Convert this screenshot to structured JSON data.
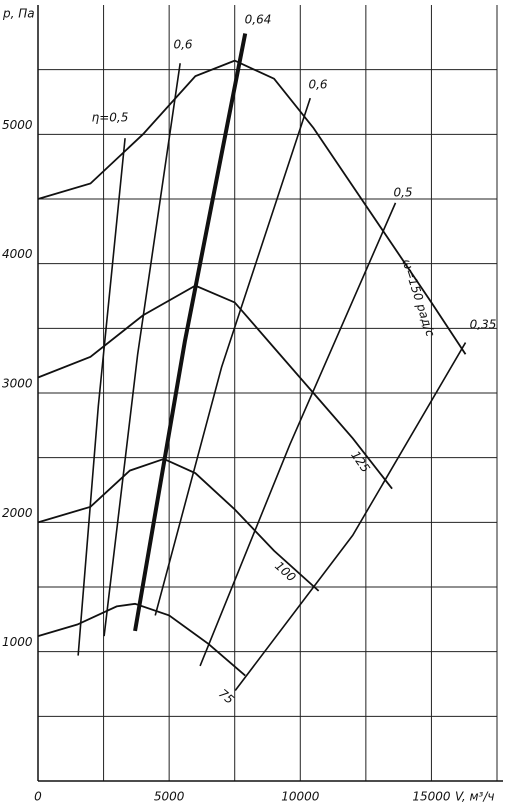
{
  "chart_data": {
    "type": "line",
    "y_label": "p, Па",
    "x_label": "V, м³/ч",
    "xlim": [
      0,
      17500
    ],
    "ylim": [
      0,
      6000
    ],
    "xticks": [
      0,
      5000,
      10000,
      15000
    ],
    "yticks": [
      1000,
      2000,
      3000,
      4000,
      5000
    ],
    "x_gridlines": [
      2500,
      7500,
      12500,
      17500
    ],
    "y_gridlines": [
      500,
      1500,
      2500,
      3500,
      4500,
      5500
    ],
    "grid": true,
    "series": [
      {
        "name": "75",
        "color": "#111",
        "x": [
          0,
          1500,
          3000,
          3700,
          5000,
          6500,
          7900
        ],
        "values": [
          1120,
          1210,
          1350,
          1370,
          1280,
          1060,
          815
        ]
      },
      {
        "name": "100",
        "color": "#111",
        "x": [
          0,
          2000,
          3500,
          4800,
          6000,
          7500,
          9000,
          10700
        ],
        "values": [
          2000,
          2120,
          2400,
          2490,
          2380,
          2100,
          1780,
          1470
        ]
      },
      {
        "name": "125",
        "color": "#111",
        "x": [
          0,
          2000,
          4000,
          6000,
          7500,
          9000,
          10500,
          12000,
          13500
        ],
        "values": [
          3120,
          3280,
          3600,
          3830,
          3700,
          3350,
          3000,
          2650,
          2260
        ]
      },
      {
        "name": "ω=150 рад/с",
        "color": "#111",
        "x": [
          0,
          2000,
          4000,
          6000,
          7500,
          9000,
          10500,
          12000,
          13500,
          15000,
          16300
        ],
        "values": [
          4500,
          4620,
          5000,
          5450,
          5570,
          5430,
          5050,
          4600,
          4150,
          3700,
          3300
        ]
      }
    ],
    "efficiency_lines": [
      {
        "name": "η=0,5",
        "color": "#111",
        "x": [
          1530,
          2300,
          3320
        ],
        "values": [
          970,
          2900,
          4970
        ]
      },
      {
        "name": "0,6",
        "color": "#111",
        "x": [
          2520,
          3800,
          5420
        ],
        "values": [
          1120,
          3300,
          5550
        ]
      },
      {
        "name": "0,64",
        "color": "#111",
        "bold": true,
        "x": [
          3700,
          5600,
          7900
        ],
        "values": [
          1160,
          3400,
          5780
        ]
      },
      {
        "name": "0,6",
        "color": "#111",
        "x": [
          4470,
          7000,
          10380
        ],
        "values": [
          1280,
          3200,
          5280
        ]
      },
      {
        "name": "0,5",
        "color": "#111",
        "x": [
          6180,
          9600,
          13630
        ],
        "values": [
          890,
          2600,
          4470
        ]
      },
      {
        "name": "0,35",
        "color": "#111",
        "x": [
          7520,
          12000,
          16300
        ],
        "values": [
          700,
          1900,
          3390
        ]
      }
    ]
  }
}
